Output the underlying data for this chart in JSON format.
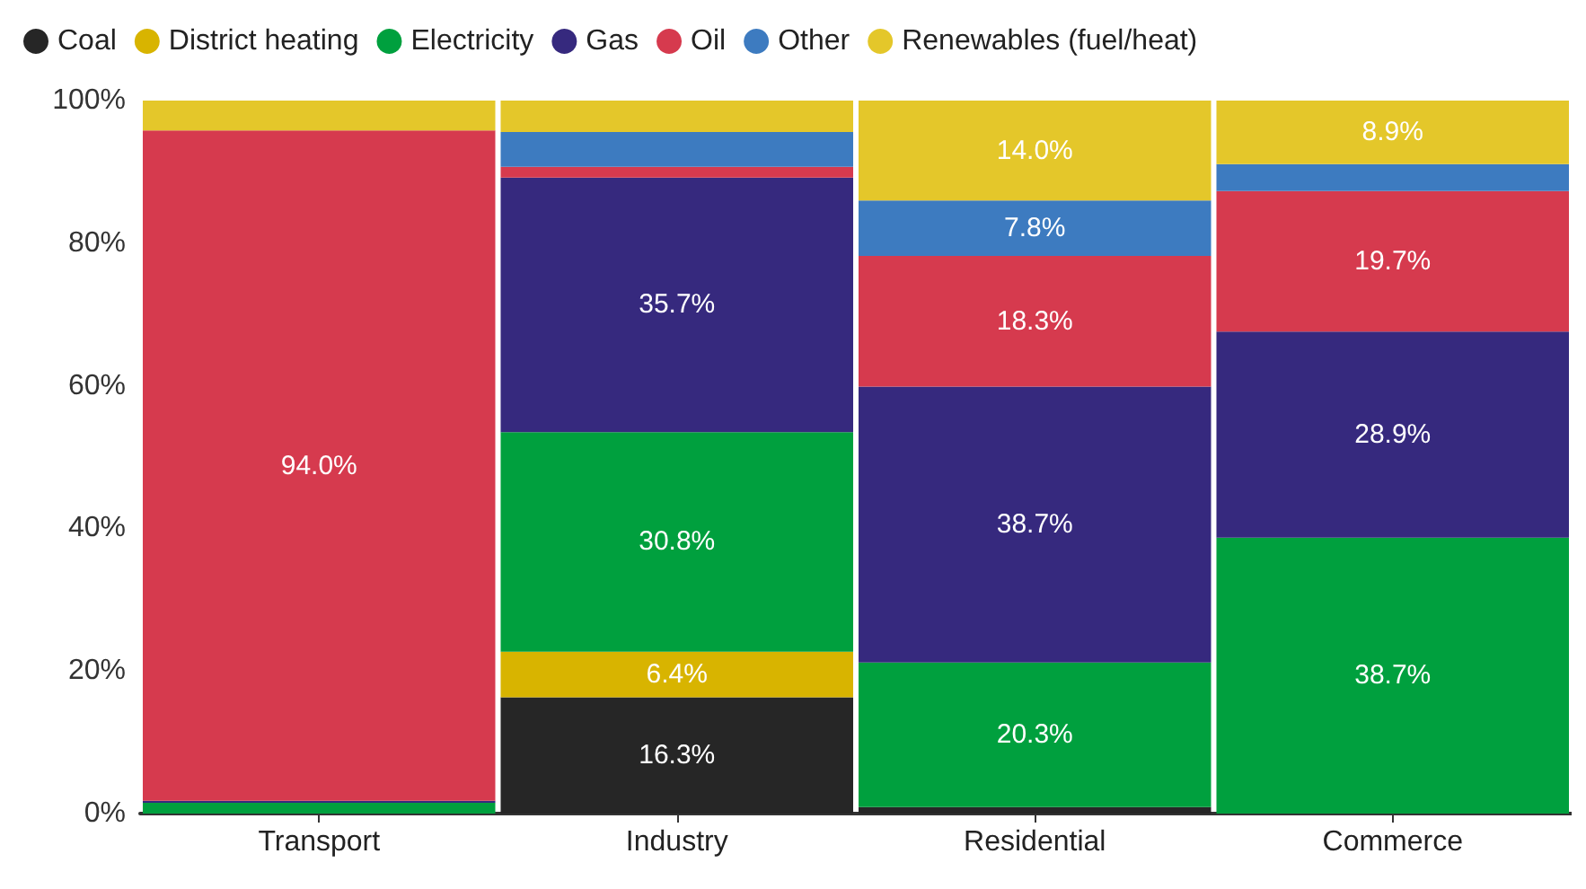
{
  "chart_data": {
    "type": "bar",
    "stacked": true,
    "categories": [
      "Transport",
      "Industry",
      "Residential",
      "Commerce"
    ],
    "series": [
      {
        "name": "Coal",
        "color": "#262626",
        "values": [
          0,
          16.3,
          0.9,
          0
        ],
        "value_labels": [
          null,
          "16.3%",
          null,
          null
        ]
      },
      {
        "name": "District heating",
        "color": "#d8b400",
        "values": [
          0,
          6.4,
          0,
          0
        ],
        "value_labels": [
          null,
          "6.4%",
          null,
          null
        ]
      },
      {
        "name": "Electricity",
        "color": "#00a03e",
        "values": [
          1.5,
          30.8,
          20.3,
          38.7
        ],
        "value_labels": [
          null,
          "30.8%",
          "20.3%",
          "38.7%"
        ]
      },
      {
        "name": "Gas",
        "color": "#36297e",
        "values": [
          0.3,
          35.7,
          38.7,
          28.9
        ],
        "value_labels": [
          null,
          "35.7%",
          "38.7%",
          "28.9%"
        ]
      },
      {
        "name": "Oil",
        "color": "#d63a4e",
        "values": [
          94.0,
          1.5,
          18.3,
          19.7
        ],
        "value_labels": [
          "94.0%",
          null,
          "18.3%",
          "19.7%"
        ]
      },
      {
        "name": "Other",
        "color": "#3d7bc0",
        "values": [
          0,
          4.9,
          7.8,
          3.8
        ],
        "value_labels": [
          null,
          null,
          "7.8%",
          null
        ]
      },
      {
        "name": "Renewables (fuel/heat)",
        "color": "#e4c72a",
        "values": [
          4.2,
          4.4,
          14.0,
          8.9
        ],
        "value_labels": [
          null,
          null,
          "14.0%",
          "8.9%"
        ]
      }
    ],
    "ylim": [
      0,
      100
    ],
    "yticks": [
      {
        "value": 0,
        "label": "0%"
      },
      {
        "value": 20,
        "label": "20%"
      },
      {
        "value": 40,
        "label": "40%"
      },
      {
        "value": 60,
        "label": "60%"
      },
      {
        "value": 80,
        "label": "80%"
      },
      {
        "value": 100,
        "label": "100%"
      }
    ],
    "grid": false,
    "legend": "top left"
  }
}
